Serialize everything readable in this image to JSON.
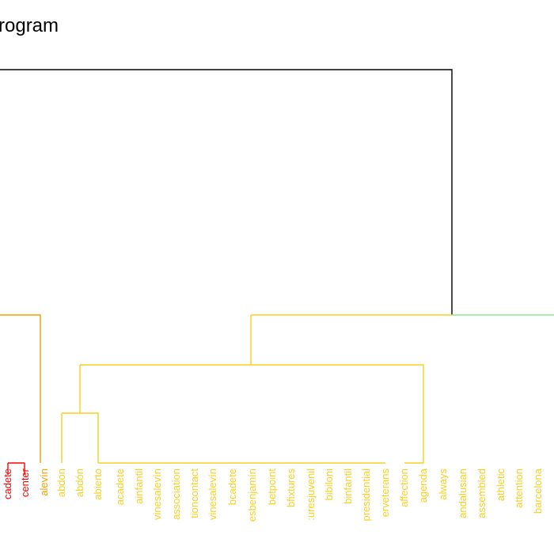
{
  "title": "rogram",
  "colors": {
    "black": "#000000",
    "orange": "#f0a000",
    "red": "#ff0000",
    "gold": "#f8d020",
    "green": "#8ee88e"
  },
  "labels": [
    {
      "text": "cadete",
      "color": "#ff0000"
    },
    {
      "text": "center",
      "color": "#ff0000"
    },
    {
      "text": "alevín",
      "color": "#f0a000"
    },
    {
      "text": "abdon",
      "color": "#f8d020"
    },
    {
      "text": "abdón",
      "color": "#f8d020"
    },
    {
      "text": "abierto",
      "color": "#f8d020"
    },
    {
      "text": "acadete",
      "color": "#f8d020"
    },
    {
      "text": "ainfantil",
      "color": "#f8d020"
    },
    {
      "text": "vinesalevín",
      "color": "#f8d020"
    },
    {
      "text": "association",
      "color": "#f8d020"
    },
    {
      "text": "tioncontact",
      "color": "#f8d020"
    },
    {
      "text": "vinesalevín",
      "color": "#f8d020"
    },
    {
      "text": "bcadete",
      "color": "#f8d020"
    },
    {
      "text": "esbenjamín",
      "color": "#f8d020"
    },
    {
      "text": "betpoint",
      "color": "#f8d020"
    },
    {
      "text": "bfixtures",
      "color": "#f8d020"
    },
    {
      "text": ":uresjuvenil",
      "color": "#f8d020"
    },
    {
      "text": "bibiloni",
      "color": "#f8d020"
    },
    {
      "text": "binfantil",
      "color": "#f8d020"
    },
    {
      "text": "presidential",
      "color": "#f8d020"
    },
    {
      "text": "erveterans",
      "color": "#f8d020"
    },
    {
      "text": "affection",
      "color": "#f8d020"
    },
    {
      "text": "agenda",
      "color": "#f8d020"
    },
    {
      "text": "always",
      "color": "#f8d020"
    },
    {
      "text": "andalusian",
      "color": "#f8d020"
    },
    {
      "text": "assembled",
      "color": "#f8d020"
    },
    {
      "text": "athletic",
      "color": "#f8d020"
    },
    {
      "text": "attention",
      "color": "#f8d020"
    },
    {
      "text": "barcelona",
      "color": "#f8d020"
    }
  ]
}
